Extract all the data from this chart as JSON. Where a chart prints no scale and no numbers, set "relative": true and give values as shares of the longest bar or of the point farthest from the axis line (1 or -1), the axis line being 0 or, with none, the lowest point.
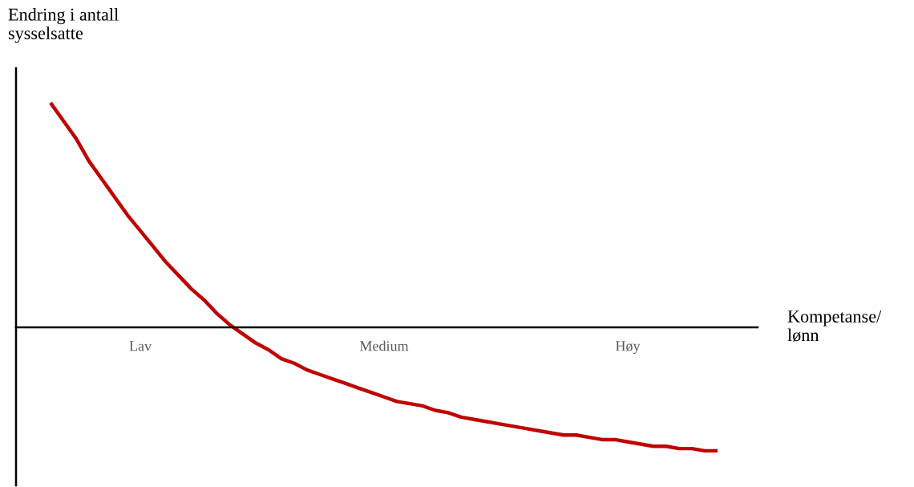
{
  "chart_data": {
    "type": "line",
    "relative": true,
    "xlabel": "Kompetanse/\nlønn",
    "ylabel": "Endring i antall\nsysselsatte",
    "categories": [
      null,
      null,
      null,
      null,
      null,
      null,
      null,
      "Lav",
      null,
      null,
      null,
      null,
      null,
      null,
      null,
      null,
      null,
      null,
      null,
      null,
      null,
      null,
      null,
      null,
      null,
      null,
      "Medium",
      null,
      null,
      null,
      null,
      null,
      null,
      null,
      null,
      null,
      null,
      null,
      null,
      null,
      null,
      null,
      null,
      null,
      null,
      "Høy",
      null,
      null,
      null,
      null,
      null,
      null,
      null
    ],
    "series": [
      {
        "color": "#c00000",
        "values": [
          1.0,
          0.92,
          0.84,
          0.74,
          0.66,
          0.58,
          0.5,
          0.43,
          0.36,
          0.29,
          0.23,
          0.17,
          0.12,
          0.06,
          0.01,
          -0.03,
          -0.07,
          -0.1,
          -0.14,
          -0.16,
          -0.19,
          -0.21,
          -0.23,
          -0.25,
          -0.27,
          -0.29,
          -0.31,
          -0.33,
          -0.34,
          -0.35,
          -0.37,
          -0.38,
          -0.4,
          -0.41,
          -0.42,
          -0.43,
          -0.44,
          -0.45,
          -0.46,
          -0.47,
          -0.48,
          -0.48,
          -0.49,
          -0.5,
          -0.5,
          -0.51,
          -0.52,
          -0.53,
          -0.53,
          -0.54,
          -0.54,
          -0.55,
          -0.55
        ]
      }
    ]
  }
}
